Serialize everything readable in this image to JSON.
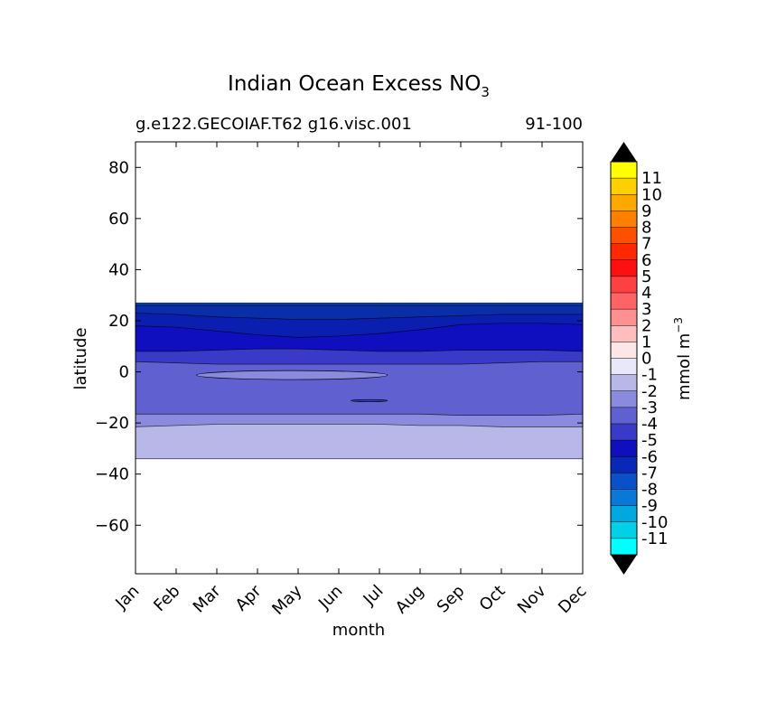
{
  "chart_data": {
    "type": "contour",
    "title": "Indian Ocean Excess NO",
    "title_subscript": "3",
    "subtitle_left": "g.e122.GECOIAF.T62 g16.visc.001",
    "subtitle_right": "91-100",
    "xlabel": "month",
    "ylabel": "latitude",
    "x_categories": [
      "Jan",
      "Feb",
      "Mar",
      "Apr",
      "May",
      "Jun",
      "Jul",
      "Aug",
      "Sep",
      "Oct",
      "Nov",
      "Dec"
    ],
    "x_range": [
      0,
      11
    ],
    "ylim": [
      -79,
      90
    ],
    "y_ticks": [
      80,
      60,
      40,
      20,
      0,
      -20,
      -40,
      -60
    ],
    "y_tick_labels": [
      "80",
      "60",
      "40",
      "20",
      "0",
      "−20",
      "−40",
      "−60"
    ],
    "data_extent_lat": [
      -34,
      27
    ],
    "bands": [
      {
        "level": "-2",
        "color": "#b8b8e8",
        "upper": [
          -21.5,
          -21,
          -20.5,
          -20.5,
          -20.5,
          -20.5,
          -20.5,
          -21,
          -21,
          -21.5,
          -21.5,
          -21.5
        ]
      },
      {
        "level": "-3",
        "color": "#8a8ade",
        "upper": [
          -16.5,
          -16.5,
          -16.5,
          -16.5,
          -16.5,
          -16.5,
          -16.5,
          -16.5,
          -17,
          -17,
          -17,
          -16.5
        ]
      },
      {
        "level": "-4",
        "color": "#6060d0",
        "upper": [
          4,
          3.5,
          3,
          3,
          3,
          3,
          3,
          3,
          3,
          3.5,
          4,
          4
        ]
      },
      {
        "level": "-5",
        "color": "#3a3ac8",
        "upper": [
          8,
          8,
          8.5,
          9,
          9,
          8.5,
          8,
          8,
          8.5,
          8.5,
          8.5,
          8
        ]
      },
      {
        "level": "-6",
        "color": "#0f0fbf",
        "upper": [
          18,
          17.5,
          16,
          14.5,
          13.5,
          14,
          15,
          16.5,
          18.5,
          19,
          19,
          18.5
        ]
      },
      {
        "level": "-7",
        "color": "#0a1fb0",
        "upper": [
          23,
          22.5,
          21.5,
          21,
          20.5,
          20.5,
          21,
          21.5,
          22,
          22.5,
          22.5,
          22.5
        ]
      },
      {
        "level": "-8",
        "color": "#0a2ea8",
        "upper": [
          26,
          26,
          26,
          26,
          26,
          26,
          26,
          26,
          26,
          26,
          26,
          26
        ]
      },
      {
        "level": "-9",
        "color": "#0a40b0",
        "upper": [
          27,
          27,
          27,
          27,
          27,
          27,
          27,
          27,
          27,
          27,
          27,
          27
        ]
      }
    ],
    "pockets": [
      {
        "level": "-3",
        "color": "#8a8ade",
        "lat_range": [
          -3,
          0.5
        ],
        "month_range": [
          1.5,
          6.2
        ]
      },
      {
        "level": "-5",
        "color": "#3a3ac8",
        "lat_range": [
          -11.5,
          -11
        ],
        "month_range": [
          5.3,
          6.2
        ]
      }
    ],
    "colorbar": {
      "units": "mmol m",
      "units_superscript": "−3",
      "levels": [
        "11",
        "10",
        "9",
        "8",
        "7",
        "6",
        "5",
        "4",
        "3",
        "2",
        "1",
        "0",
        "-1",
        "-2",
        "-3",
        "-4",
        "-5",
        "-6",
        "-7",
        "-8",
        "-9",
        "-10",
        "-11"
      ],
      "colors": [
        "#ffff00",
        "#ffd000",
        "#ffa800",
        "#ff8000",
        "#ff5000",
        "#ff2800",
        "#ff1010",
        "#ff4040",
        "#ff6464",
        "#ff9090",
        "#ffbdbd",
        "#ffe6e6",
        "#e8e8f8",
        "#b8b8e8",
        "#8a8ade",
        "#6060d0",
        "#3a3ac8",
        "#0f0fbf",
        "#0a28b8",
        "#0a50c8",
        "#0a78d8",
        "#00a8e0",
        "#00d0e8",
        "#00ffff"
      ]
    }
  }
}
